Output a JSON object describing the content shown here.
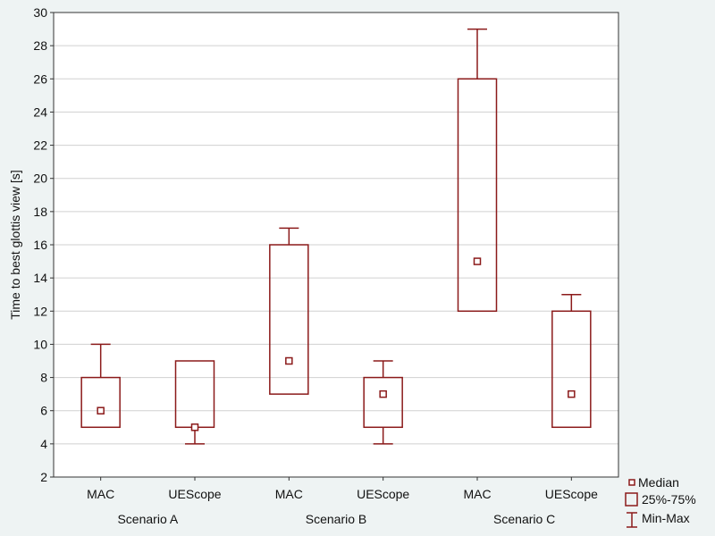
{
  "colors": {
    "box_stroke": "#8b1a1a",
    "plot_background": "#ffffff",
    "page_background": "#eef3f3",
    "grid": "#d0d0d0"
  },
  "chart_data": {
    "type": "boxplot",
    "title": "",
    "xlabel": "",
    "ylabel": "Time to best glottis view [s]",
    "ylim": [
      2,
      30
    ],
    "yticks": [
      2,
      4,
      6,
      8,
      10,
      12,
      14,
      16,
      18,
      20,
      22,
      24,
      26,
      28,
      30
    ],
    "grid": true,
    "groups": [
      "Scenario A",
      "Scenario B",
      "Scenario C"
    ],
    "categories": [
      "MAC",
      "UEScope",
      "MAC",
      "UEScope",
      "MAC",
      "UEScope"
    ],
    "boxes": [
      {
        "group": "Scenario A",
        "label": "MAC",
        "min": 5,
        "q1": 5,
        "median": 6,
        "q3": 8,
        "max": 10
      },
      {
        "group": "Scenario A",
        "label": "UEScope",
        "min": 4,
        "q1": 5,
        "median": 5,
        "q3": 9,
        "max": 9
      },
      {
        "group": "Scenario B",
        "label": "MAC",
        "min": 7,
        "q1": 7,
        "median": 9,
        "q3": 16,
        "max": 17
      },
      {
        "group": "Scenario B",
        "label": "UEScope",
        "min": 4,
        "q1": 5,
        "median": 7,
        "q3": 8,
        "max": 9
      },
      {
        "group": "Scenario C",
        "label": "MAC",
        "min": 12,
        "q1": 12,
        "median": 15,
        "q3": 26,
        "max": 29
      },
      {
        "group": "Scenario C",
        "label": "UEScope",
        "min": 5,
        "q1": 5,
        "median": 7,
        "q3": 12,
        "max": 13
      }
    ],
    "legend": {
      "placement": "bottom-right",
      "entries": [
        "Median",
        "25%-75%",
        "Min-Max"
      ]
    }
  }
}
